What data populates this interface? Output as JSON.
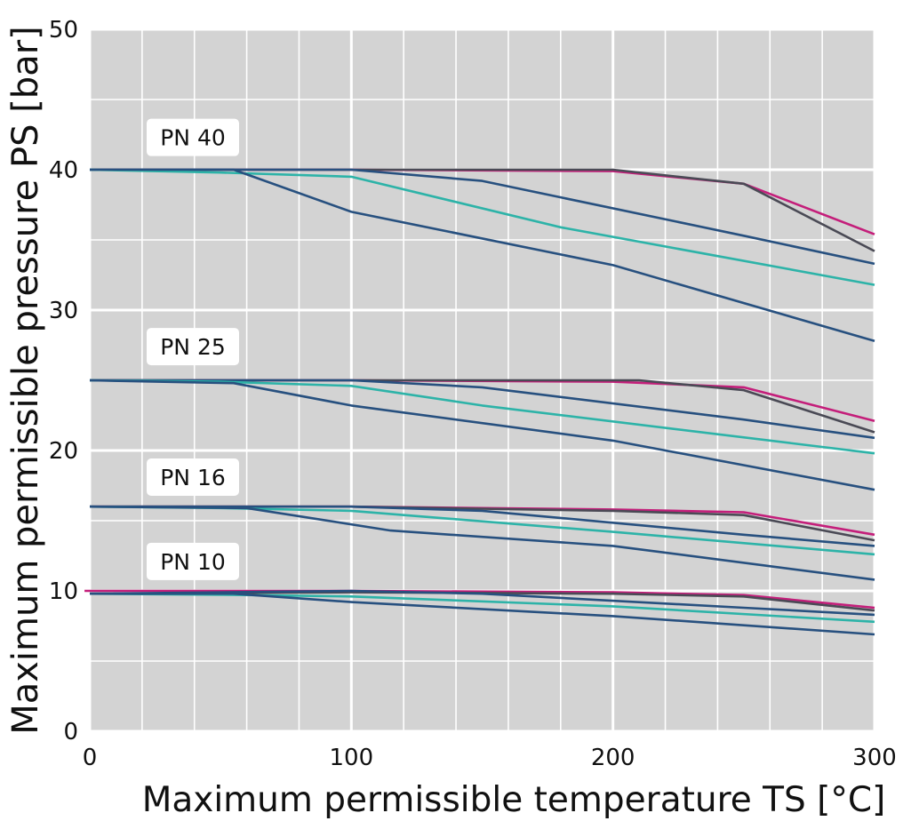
{
  "chart_data": {
    "type": "line",
    "xlabel": "Maximum permissible temperature TS [°C]",
    "ylabel": "Maximum permissible pressure PS [bar]",
    "xlim": [
      0,
      300
    ],
    "ylim": [
      0,
      50
    ],
    "x_ticks": [
      "0",
      "100",
      "200",
      "300"
    ],
    "y_ticks": [
      "0",
      "10",
      "20",
      "30",
      "40",
      "50"
    ],
    "x_minor_step": 20,
    "y_minor_step": 5,
    "grid": true,
    "colors": {
      "background": "#d3d3d3",
      "grid": "#ffffff",
      "magenta": "#c41e7a",
      "dark_gray": "#4a4a55",
      "navy": "#27507f",
      "teal": "#2db3a8"
    },
    "groups": [
      {
        "label": "PN 40",
        "label_y": 42.3,
        "series": [
          {
            "color_key": "magenta",
            "points": [
              [
                0,
                40
              ],
              [
                100,
                40
              ],
              [
                200,
                39.9
              ],
              [
                250,
                39
              ],
              [
                300,
                35.4
              ]
            ]
          },
          {
            "color_key": "dark_gray",
            "points": [
              [
                0,
                40
              ],
              [
                100,
                40
              ],
              [
                200,
                40
              ],
              [
                250,
                39
              ],
              [
                300,
                34.2
              ]
            ]
          },
          {
            "color_key": "navy",
            "points": [
              [
                0,
                40
              ],
              [
                100,
                40
              ],
              [
                150,
                39.2
              ],
              [
                250,
                35.3
              ],
              [
                300,
                33.3
              ]
            ]
          },
          {
            "color_key": "teal",
            "points": [
              [
                0,
                40
              ],
              [
                50,
                39.8
              ],
              [
                100,
                39.5
              ],
              [
                180,
                35.9
              ],
              [
                300,
                31.8
              ]
            ]
          },
          {
            "color_key": "navy",
            "points": [
              [
                0,
                40
              ],
              [
                55,
                40
              ],
              [
                100,
                37
              ],
              [
                200,
                33.2
              ],
              [
                300,
                27.8
              ]
            ]
          }
        ]
      },
      {
        "label": "PN 25",
        "label_y": 27.4,
        "series": [
          {
            "color_key": "magenta",
            "points": [
              [
                0,
                25
              ],
              [
                100,
                25
              ],
              [
                200,
                24.9
              ],
              [
                250,
                24.5
              ],
              [
                300,
                22.1
              ]
            ]
          },
          {
            "color_key": "dark_gray",
            "points": [
              [
                0,
                25
              ],
              [
                100,
                25
              ],
              [
                210,
                25
              ],
              [
                250,
                24.3
              ],
              [
                300,
                21.3
              ]
            ]
          },
          {
            "color_key": "navy",
            "points": [
              [
                0,
                25
              ],
              [
                100,
                25
              ],
              [
                150,
                24.5
              ],
              [
                250,
                22.2
              ],
              [
                300,
                20.9
              ]
            ]
          },
          {
            "color_key": "teal",
            "points": [
              [
                0,
                25
              ],
              [
                50,
                24.9
              ],
              [
                100,
                24.6
              ],
              [
                150,
                23.2
              ],
              [
                300,
                19.8
              ]
            ]
          },
          {
            "color_key": "navy",
            "points": [
              [
                0,
                25
              ],
              [
                55,
                24.8
              ],
              [
                100,
                23.2
              ],
              [
                200,
                20.7
              ],
              [
                300,
                17.2
              ]
            ]
          }
        ]
      },
      {
        "label": "PN 16",
        "label_y": 18.1,
        "series": [
          {
            "color_key": "magenta",
            "points": [
              [
                0,
                16
              ],
              [
                100,
                16
              ],
              [
                200,
                15.8
              ],
              [
                250,
                15.6
              ],
              [
                300,
                14.0
              ]
            ]
          },
          {
            "color_key": "dark_gray",
            "points": [
              [
                0,
                16
              ],
              [
                100,
                16
              ],
              [
                200,
                15.7
              ],
              [
                250,
                15.4
              ],
              [
                300,
                13.6
              ]
            ]
          },
          {
            "color_key": "navy",
            "points": [
              [
                0,
                16
              ],
              [
                100,
                16
              ],
              [
                150,
                15.7
              ],
              [
                250,
                14.0
              ],
              [
                300,
                13.2
              ]
            ]
          },
          {
            "color_key": "teal",
            "points": [
              [
                0,
                16
              ],
              [
                50,
                15.9
              ],
              [
                100,
                15.7
              ],
              [
                200,
                14.2
              ],
              [
                300,
                12.6
              ]
            ]
          },
          {
            "color_key": "navy",
            "points": [
              [
                0,
                16
              ],
              [
                60,
                15.9
              ],
              [
                115,
                14.3
              ],
              [
                200,
                13.2
              ],
              [
                300,
                10.8
              ]
            ]
          }
        ]
      },
      {
        "label": "PN 10",
        "label_y": 12.1,
        "series": [
          {
            "color_key": "magenta",
            "points": [
              [
                -2,
                10
              ],
              [
                100,
                10
              ],
              [
                200,
                9.9
              ],
              [
                250,
                9.7
              ],
              [
                300,
                8.8
              ]
            ]
          },
          {
            "color_key": "dark_gray",
            "points": [
              [
                0,
                9.8
              ],
              [
                100,
                9.9
              ],
              [
                200,
                9.8
              ],
              [
                250,
                9.6
              ],
              [
                300,
                8.6
              ]
            ]
          },
          {
            "color_key": "navy",
            "points": [
              [
                0,
                9.8
              ],
              [
                100,
                10
              ],
              [
                150,
                9.8
              ],
              [
                250,
                8.8
              ],
              [
                300,
                8.3
              ]
            ]
          },
          {
            "color_key": "teal",
            "points": [
              [
                0,
                9.8
              ],
              [
                60,
                9.7
              ],
              [
                100,
                9.6
              ],
              [
                200,
                8.9
              ],
              [
                300,
                7.8
              ]
            ]
          },
          {
            "color_key": "navy",
            "points": [
              [
                0,
                9.8
              ],
              [
                55,
                9.8
              ],
              [
                100,
                9.2
              ],
              [
                200,
                8.2
              ],
              [
                300,
                6.9
              ]
            ]
          }
        ]
      }
    ]
  }
}
